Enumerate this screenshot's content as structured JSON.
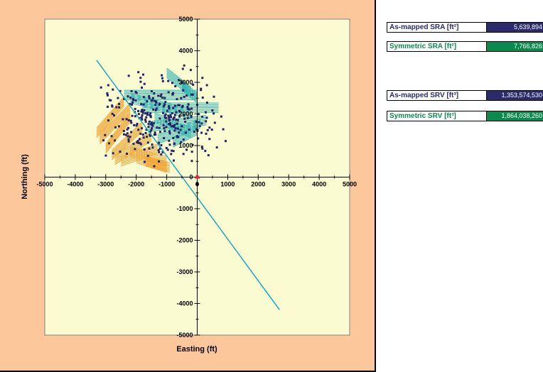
{
  "colors": {
    "panel_bg": "#fbc79b",
    "plot_bg": "#fbfbd2",
    "well_path": "#1aa8c4",
    "asmapped_accent": "#2b2b6b",
    "symmetric_accent": "#0a8a4e",
    "orange_stage": "#f2a83a",
    "teal_stage": "#39b7b4",
    "event": "#222266",
    "marker": "#e8203a"
  },
  "stats": [
    {
      "label": "As-mapped SRA [ft²]",
      "value": "5,639,894",
      "color": "#2b2b6b"
    },
    {
      "label": "Symmetric SRA [ft²]",
      "value": "7,766,826",
      "color": "#0a8a4e"
    },
    {
      "label": "As-mapped SRV [ft³]",
      "value": "1,353,574,530",
      "color": "#2b2b6b"
    },
    {
      "label": "Symmetric SRV [ft³]",
      "value": "1,864,038,260",
      "color": "#0a8a4e"
    }
  ],
  "chart_data": {
    "type": "scatter",
    "title": "",
    "xlabel": "Easting (ft)",
    "ylabel": "Northing (ft)",
    "xlim": [
      -5000,
      5000
    ],
    "ylim": [
      -5000,
      5000
    ],
    "x_ticks": [
      "-5000",
      "-4000",
      "-3000",
      "-2000",
      "-1000",
      "0",
      "1000",
      "2000",
      "3000",
      "4000",
      "5000"
    ],
    "y_ticks": [
      "5000",
      "4000",
      "3000",
      "2000",
      "1000",
      "0",
      "-1000",
      "-2000",
      "-3000",
      "-4000",
      "-5000"
    ],
    "grid": false,
    "well_path": [
      [
        -3300,
        3700
      ],
      [
        2700,
        -4200
      ]
    ],
    "origin_marker": [
      0,
      0
    ],
    "teal_stages": [
      [
        -1000,
        3300,
        -200,
        2700
      ],
      [
        -2400,
        2600,
        0,
        2600
      ],
      [
        -1800,
        2200,
        700,
        2200
      ],
      [
        -1600,
        1600,
        300,
        1800
      ],
      [
        -1300,
        1200,
        100,
        1700
      ],
      [
        -800,
        1100,
        0,
        1500
      ],
      [
        -500,
        2900,
        0,
        2500
      ],
      [
        -2200,
        2500,
        -200,
        2000
      ],
      [
        -1400,
        1900,
        -200,
        1400
      ]
    ],
    "orange_stages": [
      [
        -3300,
        1400,
        -2400,
        2400
      ],
      [
        -3200,
        1200,
        -2200,
        2200
      ],
      [
        -3000,
        900,
        -2200,
        1900
      ],
      [
        -2800,
        700,
        -1800,
        1600
      ],
      [
        -2700,
        550,
        -1500,
        1300
      ],
      [
        -2500,
        500,
        -1300,
        900
      ],
      [
        -2200,
        800,
        -1000,
        500
      ],
      [
        -2000,
        600,
        -900,
        300
      ],
      [
        -1700,
        500,
        -1000,
        300
      ]
    ],
    "event_region": {
      "x_range": [
        -2800,
        700
      ],
      "y_range": [
        500,
        3000
      ],
      "count": 320
    }
  }
}
